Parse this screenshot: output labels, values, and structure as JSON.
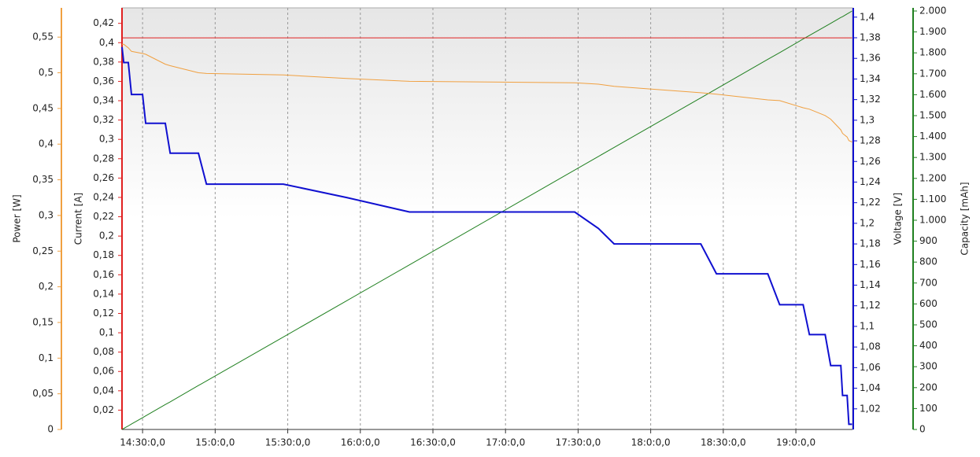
{
  "chart_data": {
    "type": "line",
    "xlim": [
      861.5,
      1163.4
    ],
    "xticks": [
      {
        "value": 870,
        "label": "14:30:0,0"
      },
      {
        "value": 900,
        "label": "15:0:0,0"
      },
      {
        "value": 930,
        "label": "15:30:0,0"
      },
      {
        "value": 960,
        "label": "16:0:0,0"
      },
      {
        "value": 990,
        "label": "16:30:0,0"
      },
      {
        "value": 1020,
        "label": "17:0:0,0"
      },
      {
        "value": 1050,
        "label": "17:30:0,0"
      },
      {
        "value": 1080,
        "label": "18:0:0,0"
      },
      {
        "value": 1110,
        "label": "18:30:0,0"
      },
      {
        "value": 1140,
        "label": "19:0:0,0"
      }
    ],
    "grid": true,
    "x": [
      861.5,
      862.2,
      864.1,
      865.4,
      870,
      871.3,
      879.4,
      881.4,
      893.1,
      896.4,
      928.2,
      954.3,
      980.3,
      1048.6,
      1058.4,
      1064.9,
      1100.7,
      1107.2,
      1128.4,
      1133.3,
      1143,
      1145.6,
      1152.1,
      1154.4,
      1158.6,
      1159.3,
      1161.2,
      1161.9,
      1163.2
    ],
    "series": [
      {
        "name": "Power [W]",
        "color": "#f0a040",
        "ylim": [
          0,
          0.591
        ],
        "yticks": [
          0,
          {
            "value": 0.05,
            "label": "0,05"
          },
          {
            "value": 0.1,
            "label": "0,1"
          },
          {
            "value": 0.15,
            "label": "0,15"
          },
          {
            "value": 0.2,
            "label": "0,2"
          },
          {
            "value": 0.25,
            "label": "0,25"
          },
          {
            "value": 0.3,
            "label": "0,3"
          },
          {
            "value": 0.35,
            "label": "0,35"
          },
          {
            "value": 0.4,
            "label": "0,4"
          },
          {
            "value": 0.45,
            "label": "0,45"
          },
          {
            "value": 0.5,
            "label": "0,5"
          },
          {
            "value": 0.55,
            "label": "0,55"
          }
        ],
        "values": [
          0.54,
          0.54,
          0.535,
          0.53,
          0.527,
          0.526,
          0.512,
          0.51,
          0.5,
          0.499,
          0.497,
          0.492,
          0.488,
          0.486,
          0.484,
          0.481,
          0.472,
          0.47,
          0.462,
          0.461,
          0.451,
          0.449,
          0.44,
          0.435,
          0.42,
          0.415,
          0.41,
          0.405,
          0.403
        ]
      },
      {
        "name": "Current [A]",
        "color": "#e02020",
        "ylim": [
          0,
          0.436
        ],
        "yticks": [
          {
            "value": 0.02,
            "label": "0,02"
          },
          {
            "value": 0.04,
            "label": "0,04"
          },
          {
            "value": 0.06,
            "label": "0,06"
          },
          {
            "value": 0.08,
            "label": "0,08"
          },
          {
            "value": 0.1,
            "label": "0,1"
          },
          {
            "value": 0.12,
            "label": "0,12"
          },
          {
            "value": 0.14,
            "label": "0,14"
          },
          {
            "value": 0.16,
            "label": "0,16"
          },
          {
            "value": 0.18,
            "label": "0,18"
          },
          {
            "value": 0.2,
            "label": "0,2"
          },
          {
            "value": 0.22,
            "label": "0,22"
          },
          {
            "value": 0.24,
            "label": "0,24"
          },
          {
            "value": 0.26,
            "label": "0,26"
          },
          {
            "value": 0.28,
            "label": "0,28"
          },
          {
            "value": 0.3,
            "label": "0,3"
          },
          {
            "value": 0.32,
            "label": "0,32"
          },
          {
            "value": 0.34,
            "label": "0,34"
          },
          {
            "value": 0.36,
            "label": "0,36"
          },
          {
            "value": 0.38,
            "label": "0,38"
          },
          {
            "value": 0.4,
            "label": "0,4"
          },
          {
            "value": 0.42,
            "label": "0,42"
          }
        ],
        "values": [
          0.405,
          0.405,
          0.405,
          0.405,
          0.405,
          0.405,
          0.405,
          0.405,
          0.405,
          0.405,
          0.405,
          0.405,
          0.405,
          0.405,
          0.405,
          0.405,
          0.405,
          0.405,
          0.405,
          0.405,
          0.405,
          0.405,
          0.405,
          0.405,
          0.405,
          0.405,
          0.405,
          0.405,
          0.405
        ]
      },
      {
        "name": "Voltage [V]",
        "color": "#1010d0",
        "ylim": [
          1.0,
          1.409
        ],
        "yticks": [
          {
            "value": 1.02,
            "label": "1,02"
          },
          {
            "value": 1.04,
            "label": "1,04"
          },
          {
            "value": 1.06,
            "label": "1,06"
          },
          {
            "value": 1.08,
            "label": "1,08"
          },
          {
            "value": 1.1,
            "label": "1,1"
          },
          {
            "value": 1.12,
            "label": "1,12"
          },
          {
            "value": 1.14,
            "label": "1,14"
          },
          {
            "value": 1.16,
            "label": "1,16"
          },
          {
            "value": 1.18,
            "label": "1,18"
          },
          {
            "value": 1.2,
            "label": "1,2"
          },
          {
            "value": 1.22,
            "label": "1,22"
          },
          {
            "value": 1.24,
            "label": "1,24"
          },
          {
            "value": 1.26,
            "label": "1,26"
          },
          {
            "value": 1.28,
            "label": "1,28"
          },
          {
            "value": 1.3,
            "label": "1,3"
          },
          {
            "value": 1.32,
            "label": "1,32"
          },
          {
            "value": 1.34,
            "label": "1,34"
          },
          {
            "value": 1.36,
            "label": "1,36"
          },
          {
            "value": 1.38,
            "label": "1,38"
          },
          {
            "value": 1.4,
            "label": "1,4"
          }
        ],
        "values": [
          1.371,
          1.356,
          1.356,
          1.325,
          1.325,
          1.297,
          1.297,
          1.268,
          1.268,
          1.238,
          1.238,
          1.225,
          1.211,
          1.211,
          1.195,
          1.18,
          1.18,
          1.151,
          1.151,
          1.121,
          1.121,
          1.092,
          1.092,
          1.062,
          1.062,
          1.033,
          1.033,
          1.005,
          1.005
        ]
      },
      {
        "name": "Capacity [mAh]",
        "color": "#208020",
        "ylim": [
          0,
          2015
        ],
        "yticks": [
          0,
          100,
          200,
          300,
          400,
          500,
          600,
          700,
          800,
          900,
          {
            "value": 1000,
            "label": "1.000"
          },
          {
            "value": 1100,
            "label": "1.100"
          },
          {
            "value": 1200,
            "label": "1.200"
          },
          {
            "value": 1300,
            "label": "1.300"
          },
          {
            "value": 1400,
            "label": "1.400"
          },
          {
            "value": 1500,
            "label": "1.500"
          },
          {
            "value": 1600,
            "label": "1.600"
          },
          {
            "value": 1700,
            "label": "1.700"
          },
          {
            "value": 1800,
            "label": "1.800"
          },
          {
            "value": 1900,
            "label": "1.900"
          },
          {
            "value": 2000,
            "label": "2.000"
          }
        ],
        "values": [
          0,
          5,
          17,
          26,
          56,
          65,
          119,
          132,
          210,
          232,
          442,
          615,
          787,
          1240,
          1305,
          1348,
          1585,
          1628,
          1769,
          1801,
          1866,
          1883,
          1926,
          1941,
          1969,
          1973,
          1986,
          1991,
          2000
        ]
      }
    ]
  }
}
